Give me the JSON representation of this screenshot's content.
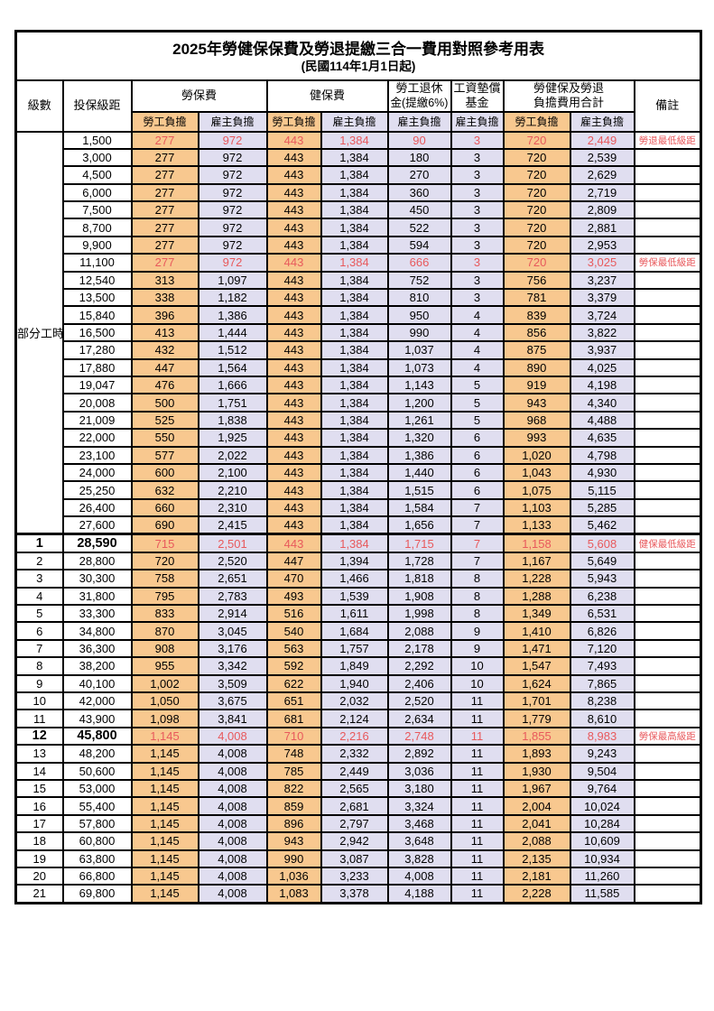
{
  "title": "2025年勞健保保費及勞退提繳三合一費用對照參考用表",
  "subtitle": "(民國114年1月1日起)",
  "colors": {
    "employee_fill": "#F8C88F",
    "employer_fill": "#E0DEF0",
    "accent_red": "#E8595C",
    "border": "#000000"
  },
  "header": {
    "level": "級數",
    "bracket": "投保級距",
    "labor_insurance": "勞保費",
    "health_insurance": "健保費",
    "pension_line1": "勞工退休",
    "pension_line2": "金(提繳6%)",
    "wage_fund_line1": "工資墊償",
    "wage_fund_line2": "基金",
    "total_line1": "勞健保及勞退",
    "total_line2": "負擔費用合計",
    "remark": "備註",
    "employee": "勞工負擔",
    "employer": "雇主負擔"
  },
  "part_time": {
    "label": "部分工時",
    "span": 23
  },
  "value_column_names": [
    "labor-ins-employee",
    "labor-ins-employer",
    "health-ins-employee",
    "health-ins-employer",
    "pension-employer",
    "wage-fund-employer",
    "total-employee",
    "total-employer"
  ],
  "rows": [
    {
      "lv": "",
      "br": "1,500",
      "v": [
        "277",
        "972",
        "443",
        "1,384",
        "90",
        "3",
        "720",
        "2,449"
      ],
      "rm": "勞退最低級距",
      "hl": true
    },
    {
      "lv": "",
      "br": "3,000",
      "v": [
        "277",
        "972",
        "443",
        "1,384",
        "180",
        "3",
        "720",
        "2,539"
      ],
      "rm": ""
    },
    {
      "lv": "",
      "br": "4,500",
      "v": [
        "277",
        "972",
        "443",
        "1,384",
        "270",
        "3",
        "720",
        "2,629"
      ],
      "rm": ""
    },
    {
      "lv": "",
      "br": "6,000",
      "v": [
        "277",
        "972",
        "443",
        "1,384",
        "360",
        "3",
        "720",
        "2,719"
      ],
      "rm": ""
    },
    {
      "lv": "",
      "br": "7,500",
      "v": [
        "277",
        "972",
        "443",
        "1,384",
        "450",
        "3",
        "720",
        "2,809"
      ],
      "rm": ""
    },
    {
      "lv": "",
      "br": "8,700",
      "v": [
        "277",
        "972",
        "443",
        "1,384",
        "522",
        "3",
        "720",
        "2,881"
      ],
      "rm": ""
    },
    {
      "lv": "",
      "br": "9,900",
      "v": [
        "277",
        "972",
        "443",
        "1,384",
        "594",
        "3",
        "720",
        "2,953"
      ],
      "rm": ""
    },
    {
      "lv": "",
      "br": "11,100",
      "v": [
        "277",
        "972",
        "443",
        "1,384",
        "666",
        "3",
        "720",
        "3,025"
      ],
      "rm": "勞保最低級距",
      "hl": true
    },
    {
      "lv": "",
      "br": "12,540",
      "v": [
        "313",
        "1,097",
        "443",
        "1,384",
        "752",
        "3",
        "756",
        "3,237"
      ],
      "rm": ""
    },
    {
      "lv": "",
      "br": "13,500",
      "v": [
        "338",
        "1,182",
        "443",
        "1,384",
        "810",
        "3",
        "781",
        "3,379"
      ],
      "rm": ""
    },
    {
      "lv": "",
      "br": "15,840",
      "v": [
        "396",
        "1,386",
        "443",
        "1,384",
        "950",
        "4",
        "839",
        "3,724"
      ],
      "rm": ""
    },
    {
      "lv": "",
      "br": "16,500",
      "v": [
        "413",
        "1,444",
        "443",
        "1,384",
        "990",
        "4",
        "856",
        "3,822"
      ],
      "rm": ""
    },
    {
      "lv": "",
      "br": "17,280",
      "v": [
        "432",
        "1,512",
        "443",
        "1,384",
        "1,037",
        "4",
        "875",
        "3,937"
      ],
      "rm": ""
    },
    {
      "lv": "",
      "br": "17,880",
      "v": [
        "447",
        "1,564",
        "443",
        "1,384",
        "1,073",
        "4",
        "890",
        "4,025"
      ],
      "rm": ""
    },
    {
      "lv": "",
      "br": "19,047",
      "v": [
        "476",
        "1,666",
        "443",
        "1,384",
        "1,143",
        "5",
        "919",
        "4,198"
      ],
      "rm": ""
    },
    {
      "lv": "",
      "br": "20,008",
      "v": [
        "500",
        "1,751",
        "443",
        "1,384",
        "1,200",
        "5",
        "943",
        "4,340"
      ],
      "rm": ""
    },
    {
      "lv": "",
      "br": "21,009",
      "v": [
        "525",
        "1,838",
        "443",
        "1,384",
        "1,261",
        "5",
        "968",
        "4,488"
      ],
      "rm": ""
    },
    {
      "lv": "",
      "br": "22,000",
      "v": [
        "550",
        "1,925",
        "443",
        "1,384",
        "1,320",
        "6",
        "993",
        "4,635"
      ],
      "rm": ""
    },
    {
      "lv": "",
      "br": "23,100",
      "v": [
        "577",
        "2,022",
        "443",
        "1,384",
        "1,386",
        "6",
        "1,020",
        "4,798"
      ],
      "rm": ""
    },
    {
      "lv": "",
      "br": "24,000",
      "v": [
        "600",
        "2,100",
        "443",
        "1,384",
        "1,440",
        "6",
        "1,043",
        "4,930"
      ],
      "rm": ""
    },
    {
      "lv": "",
      "br": "25,250",
      "v": [
        "632",
        "2,210",
        "443",
        "1,384",
        "1,515",
        "6",
        "1,075",
        "5,115"
      ],
      "rm": ""
    },
    {
      "lv": "",
      "br": "26,400",
      "v": [
        "660",
        "2,310",
        "443",
        "1,384",
        "1,584",
        "7",
        "1,103",
        "5,285"
      ],
      "rm": ""
    },
    {
      "lv": "",
      "br": "27,600",
      "v": [
        "690",
        "2,415",
        "443",
        "1,384",
        "1,656",
        "7",
        "1,133",
        "5,462"
      ],
      "rm": ""
    },
    {
      "lv": "1",
      "br": "28,590",
      "v": [
        "715",
        "2,501",
        "443",
        "1,384",
        "1,715",
        "7",
        "1,158",
        "5,608"
      ],
      "rm": "健保最低級距",
      "hl": true,
      "bold": true,
      "sep": true
    },
    {
      "lv": "2",
      "br": "28,800",
      "v": [
        "720",
        "2,520",
        "447",
        "1,394",
        "1,728",
        "7",
        "1,167",
        "5,649"
      ],
      "rm": ""
    },
    {
      "lv": "3",
      "br": "30,300",
      "v": [
        "758",
        "2,651",
        "470",
        "1,466",
        "1,818",
        "8",
        "1,228",
        "5,943"
      ],
      "rm": ""
    },
    {
      "lv": "4",
      "br": "31,800",
      "v": [
        "795",
        "2,783",
        "493",
        "1,539",
        "1,908",
        "8",
        "1,288",
        "6,238"
      ],
      "rm": ""
    },
    {
      "lv": "5",
      "br": "33,300",
      "v": [
        "833",
        "2,914",
        "516",
        "1,611",
        "1,998",
        "8",
        "1,349",
        "6,531"
      ],
      "rm": ""
    },
    {
      "lv": "6",
      "br": "34,800",
      "v": [
        "870",
        "3,045",
        "540",
        "1,684",
        "2,088",
        "9",
        "1,410",
        "6,826"
      ],
      "rm": ""
    },
    {
      "lv": "7",
      "br": "36,300",
      "v": [
        "908",
        "3,176",
        "563",
        "1,757",
        "2,178",
        "9",
        "1,471",
        "7,120"
      ],
      "rm": ""
    },
    {
      "lv": "8",
      "br": "38,200",
      "v": [
        "955",
        "3,342",
        "592",
        "1,849",
        "2,292",
        "10",
        "1,547",
        "7,493"
      ],
      "rm": ""
    },
    {
      "lv": "9",
      "br": "40,100",
      "v": [
        "1,002",
        "3,509",
        "622",
        "1,940",
        "2,406",
        "10",
        "1,624",
        "7,865"
      ],
      "rm": ""
    },
    {
      "lv": "10",
      "br": "42,000",
      "v": [
        "1,050",
        "3,675",
        "651",
        "2,032",
        "2,520",
        "11",
        "1,701",
        "8,238"
      ],
      "rm": ""
    },
    {
      "lv": "11",
      "br": "43,900",
      "v": [
        "1,098",
        "3,841",
        "681",
        "2,124",
        "2,634",
        "11",
        "1,779",
        "8,610"
      ],
      "rm": ""
    },
    {
      "lv": "12",
      "br": "45,800",
      "v": [
        "1,145",
        "4,008",
        "710",
        "2,216",
        "2,748",
        "11",
        "1,855",
        "8,983"
      ],
      "rm": "勞保最高級距",
      "hl": true,
      "bold": true
    },
    {
      "lv": "13",
      "br": "48,200",
      "v": [
        "1,145",
        "4,008",
        "748",
        "2,332",
        "2,892",
        "11",
        "1,893",
        "9,243"
      ],
      "rm": ""
    },
    {
      "lv": "14",
      "br": "50,600",
      "v": [
        "1,145",
        "4,008",
        "785",
        "2,449",
        "3,036",
        "11",
        "1,930",
        "9,504"
      ],
      "rm": ""
    },
    {
      "lv": "15",
      "br": "53,000",
      "v": [
        "1,145",
        "4,008",
        "822",
        "2,565",
        "3,180",
        "11",
        "1,967",
        "9,764"
      ],
      "rm": ""
    },
    {
      "lv": "16",
      "br": "55,400",
      "v": [
        "1,145",
        "4,008",
        "859",
        "2,681",
        "3,324",
        "11",
        "2,004",
        "10,024"
      ],
      "rm": ""
    },
    {
      "lv": "17",
      "br": "57,800",
      "v": [
        "1,145",
        "4,008",
        "896",
        "2,797",
        "3,468",
        "11",
        "2,041",
        "10,284"
      ],
      "rm": ""
    },
    {
      "lv": "18",
      "br": "60,800",
      "v": [
        "1,145",
        "4,008",
        "943",
        "2,942",
        "3,648",
        "11",
        "2,088",
        "10,609"
      ],
      "rm": ""
    },
    {
      "lv": "19",
      "br": "63,800",
      "v": [
        "1,145",
        "4,008",
        "990",
        "3,087",
        "3,828",
        "11",
        "2,135",
        "10,934"
      ],
      "rm": ""
    },
    {
      "lv": "20",
      "br": "66,800",
      "v": [
        "1,145",
        "4,008",
        "1,036",
        "3,233",
        "4,008",
        "11",
        "2,181",
        "11,260"
      ],
      "rm": ""
    },
    {
      "lv": "21",
      "br": "69,800",
      "v": [
        "1,145",
        "4,008",
        "1,083",
        "3,378",
        "4,188",
        "11",
        "2,228",
        "11,585"
      ],
      "rm": ""
    }
  ]
}
